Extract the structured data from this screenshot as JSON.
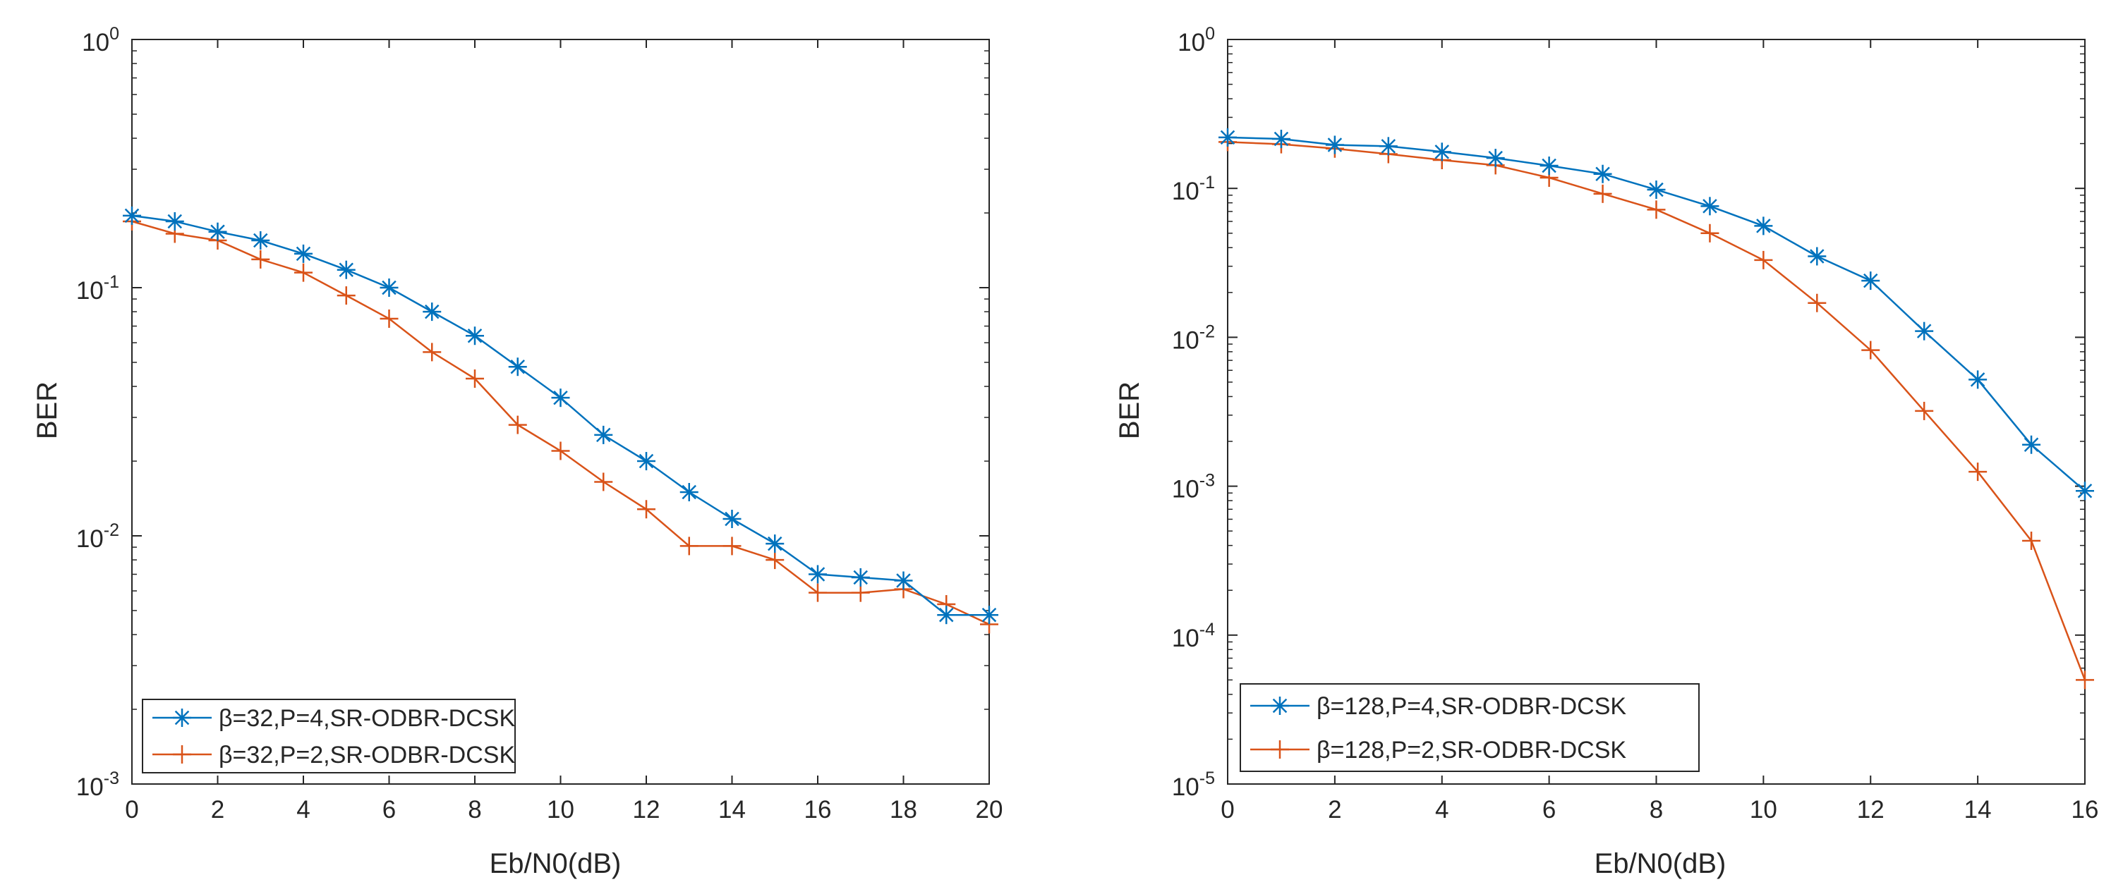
{
  "colors": {
    "series1": "#0072BD",
    "series2": "#D95319",
    "axis": "#262626",
    "legend_border": "#262626"
  },
  "chart_data": [
    {
      "type": "line",
      "xlabel": "Eb/N0(dB)",
      "ylabel": "BER",
      "xlim": [
        0,
        20
      ],
      "ylim": [
        0.001,
        1
      ],
      "yscale": "log",
      "grid": false,
      "legend_position": "bottom-left",
      "x_ticks": [
        "0",
        "2",
        "4",
        "6",
        "8",
        "10",
        "12",
        "14",
        "16",
        "18",
        "20"
      ],
      "y_ticks": [
        {
          "base": "10",
          "exp": "0"
        },
        {
          "base": "10",
          "exp": "-1"
        },
        {
          "base": "10",
          "exp": "-2"
        },
        {
          "base": "10",
          "exp": "-3"
        }
      ],
      "x": [
        0,
        1,
        2,
        3,
        4,
        5,
        6,
        7,
        8,
        9,
        10,
        11,
        12,
        13,
        14,
        15,
        16,
        17,
        18,
        19,
        20
      ],
      "series": [
        {
          "name": "β=32,P=4,SR-ODBR-DCSK",
          "marker": "asterisk",
          "color": "#0072BD",
          "values": [
            0.195,
            0.185,
            0.168,
            0.155,
            0.137,
            0.118,
            0.1,
            0.08,
            0.064,
            0.048,
            0.036,
            0.0255,
            0.02,
            0.015,
            0.0117,
            0.0093,
            0.007,
            0.0068,
            0.0066,
            0.0048,
            0.0048
          ]
        },
        {
          "name": "β=32,P=2,SR-ODBR-DCSK",
          "marker": "plus",
          "color": "#D95319",
          "values": [
            0.185,
            0.165,
            0.155,
            0.13,
            0.115,
            0.093,
            0.075,
            0.055,
            0.043,
            0.028,
            0.022,
            0.0165,
            0.0128,
            0.0091,
            0.0091,
            0.008,
            0.0059,
            0.0059,
            0.0061,
            0.0053,
            0.0044
          ]
        }
      ]
    },
    {
      "type": "line",
      "xlabel": "Eb/N0(dB)",
      "ylabel": "BER",
      "xlim": [
        0,
        16
      ],
      "ylim": [
        1e-05,
        1
      ],
      "yscale": "log",
      "grid": false,
      "legend_position": "bottom-left",
      "x_ticks": [
        "0",
        "2",
        "4",
        "6",
        "8",
        "10",
        "12",
        "14",
        "16"
      ],
      "y_ticks": [
        {
          "base": "10",
          "exp": "0"
        },
        {
          "base": "10",
          "exp": "-1"
        },
        {
          "base": "10",
          "exp": "-2"
        },
        {
          "base": "10",
          "exp": "-3"
        },
        {
          "base": "10",
          "exp": "-4"
        },
        {
          "base": "10",
          "exp": "-5"
        }
      ],
      "x": [
        0,
        1,
        2,
        3,
        4,
        5,
        6,
        7,
        8,
        9,
        10,
        11,
        12,
        13,
        14,
        15,
        16
      ],
      "series": [
        {
          "name": "β=128,P=4,SR-ODBR-DCSK",
          "marker": "asterisk",
          "color": "#0072BD",
          "values": [
            0.22,
            0.215,
            0.196,
            0.192,
            0.176,
            0.16,
            0.142,
            0.125,
            0.098,
            0.076,
            0.056,
            0.035,
            0.024,
            0.011,
            0.0052,
            0.0019,
            0.00093
          ]
        },
        {
          "name": "β=128,P=2,SR-ODBR-DCSK",
          "marker": "plus",
          "color": "#D95319",
          "values": [
            0.205,
            0.198,
            0.185,
            0.17,
            0.155,
            0.143,
            0.118,
            0.092,
            0.072,
            0.05,
            0.033,
            0.017,
            0.0082,
            0.0032,
            0.00125,
            0.00043,
            5e-05
          ]
        }
      ]
    }
  ]
}
